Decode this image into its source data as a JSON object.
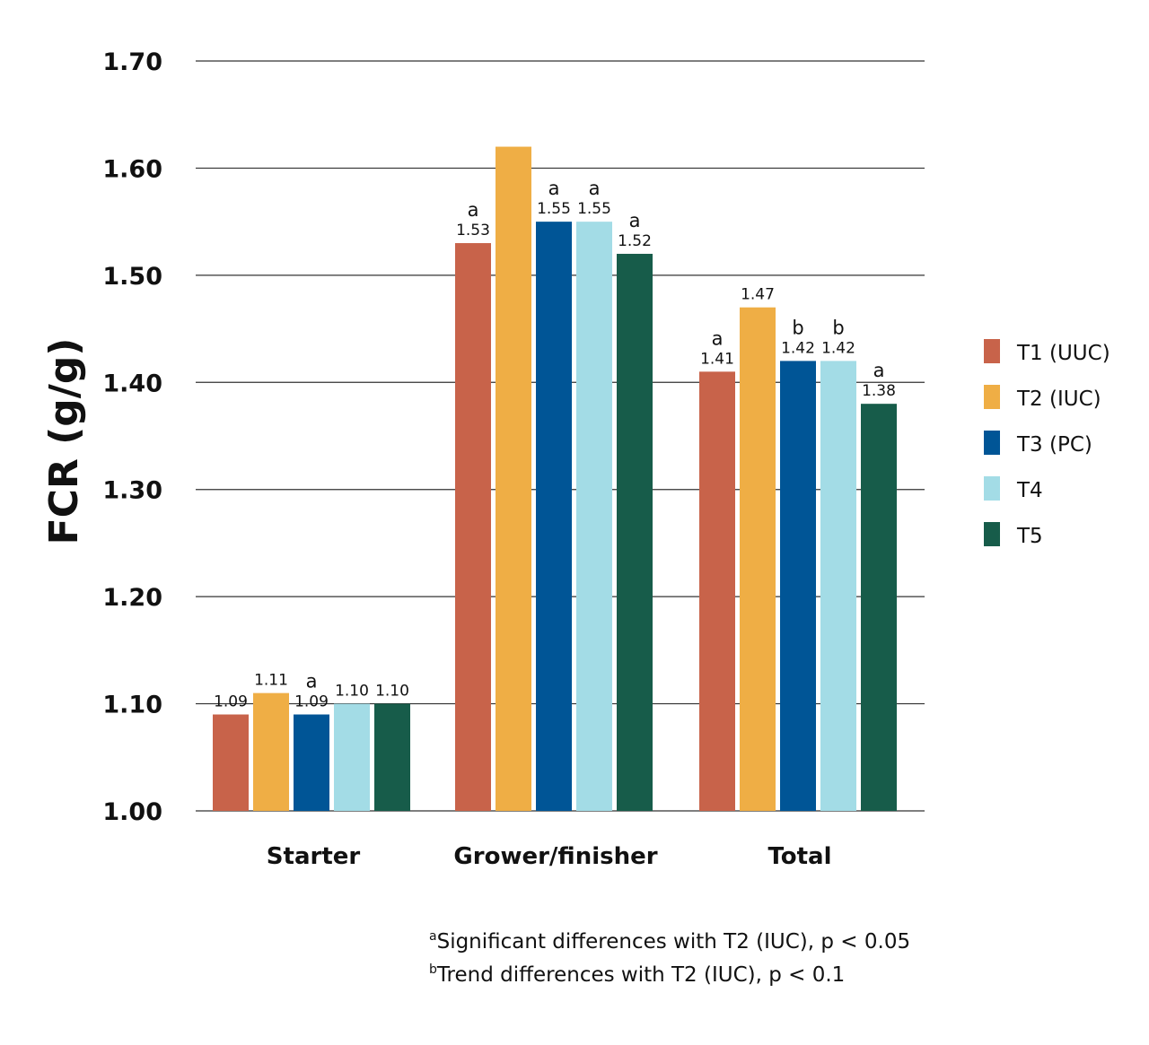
{
  "chart_data": {
    "type": "bar",
    "title": "",
    "xlabel": "",
    "ylabel": "FCR (g/g)",
    "ylim": [
      1.0,
      1.7
    ],
    "yticks": [
      "1.00",
      "1.10",
      "1.20",
      "1.30",
      "1.40",
      "1.50",
      "1.60",
      "1.70"
    ],
    "grid": true,
    "legend_placement": "right",
    "categories": [
      "Starter",
      "Grower/finisher",
      "Total"
    ],
    "series": [
      {
        "name": "T1 (UUC)",
        "color": "#C8634A",
        "values": [
          1.09,
          1.53,
          1.41
        ],
        "labels": [
          "1.09",
          "1.53",
          "1.41"
        ],
        "sig": [
          "",
          "a",
          "a"
        ]
      },
      {
        "name": "T2 (IUC)",
        "color": "#EFAE45",
        "values": [
          1.11,
          1.62,
          1.47
        ],
        "labels": [
          "1.11",
          "",
          "1.47"
        ],
        "sig": [
          "",
          "",
          ""
        ]
      },
      {
        "name": "T3 (PC)",
        "color": "#005596",
        "values": [
          1.09,
          1.55,
          1.42
        ],
        "labels": [
          "1.09",
          "1.55",
          "1.42"
        ],
        "sig": [
          "a",
          "a",
          "b"
        ]
      },
      {
        "name": "T4",
        "color": "#A3DCE6",
        "values": [
          1.1,
          1.55,
          1.42
        ],
        "labels": [
          "1.10",
          "1.55",
          "1.42"
        ],
        "sig": [
          "",
          "a",
          "b"
        ]
      },
      {
        "name": "T5",
        "color": "#175C4A",
        "values": [
          1.1,
          1.52,
          1.38
        ],
        "labels": [
          "1.10",
          "1.52",
          "1.38"
        ],
        "sig": [
          "",
          "a",
          "a"
        ]
      }
    ]
  },
  "footnotes": [
    {
      "mark": "a",
      "text": "Significant differences with T2 (IUC),  p < 0.05"
    },
    {
      "mark": "b",
      "text": "Trend differences with T2 (IUC),  p < 0.1"
    }
  ]
}
